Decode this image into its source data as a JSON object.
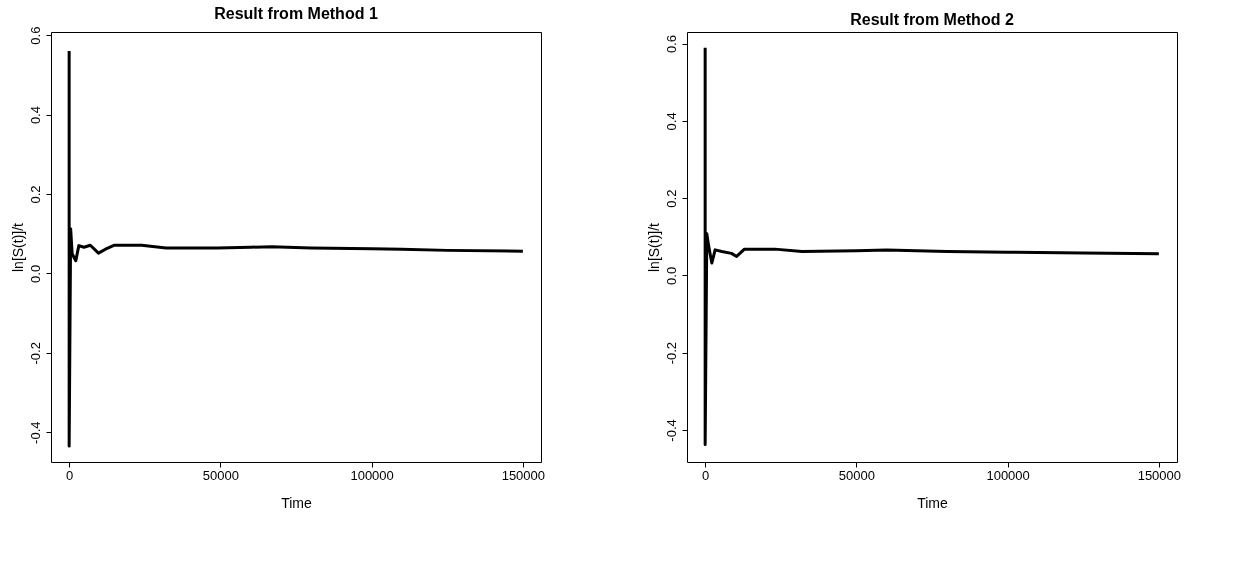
{
  "chart_data": [
    {
      "type": "line",
      "title": "Result from Method 1",
      "xlabel": "Time",
      "ylabel": "ln[S(t)]/t",
      "x": [
        1,
        2,
        500,
        1000,
        2200,
        3200,
        4900,
        7000,
        9700,
        12000,
        15000,
        24000,
        32000,
        49000,
        60000,
        67000,
        80000,
        100000,
        110000,
        125000,
        150000
      ],
      "series": [
        {
          "color": "#000000",
          "values": [
            0.56,
            -0.435,
            0.112,
            0.049,
            0.032,
            0.07,
            0.066,
            0.071,
            0.051,
            0.061,
            0.071,
            0.071,
            0.064,
            0.064,
            0.066,
            0.067,
            0.064,
            0.062,
            0.061,
            0.058,
            0.056
          ]
        }
      ],
      "xlim": [
        -6000,
        156000
      ],
      "ylim": [
        -0.475,
        0.608
      ],
      "xticks": [
        0,
        50000,
        100000,
        150000
      ],
      "yticks": [
        -0.4,
        -0.2,
        {
          "value": 0,
          "label": "0.0"
        },
        0.2,
        0.4,
        0.6
      ],
      "grid": false,
      "line_style": "solid"
    },
    {
      "type": "line",
      "title": "Result from Method 2",
      "xlabel": "Time",
      "ylabel": "ln[S(t)]/t",
      "x": [
        1,
        2,
        550,
        1100,
        2200,
        3300,
        5500,
        8700,
        10400,
        13000,
        23000,
        32000,
        50000,
        60000,
        70000,
        80000,
        100000,
        125000,
        150000
      ],
      "series": [
        {
          "color": "#000000",
          "values": [
            0.589,
            -0.438,
            0.108,
            0.079,
            0.032,
            0.066,
            0.062,
            0.057,
            0.049,
            0.068,
            0.068,
            0.062,
            0.064,
            0.066,
            0.064,
            0.062,
            0.06,
            0.058,
            0.056
          ]
        }
      ],
      "xlim": [
        -6000,
        156000
      ],
      "ylim": [
        -0.483,
        0.63
      ],
      "xticks": [
        0,
        50000,
        100000,
        150000
      ],
      "yticks": [
        -0.4,
        -0.2,
        {
          "value": 0,
          "label": "0.0"
        },
        0.2,
        0.4,
        0.6
      ],
      "grid": false,
      "line_style": "solid"
    }
  ]
}
